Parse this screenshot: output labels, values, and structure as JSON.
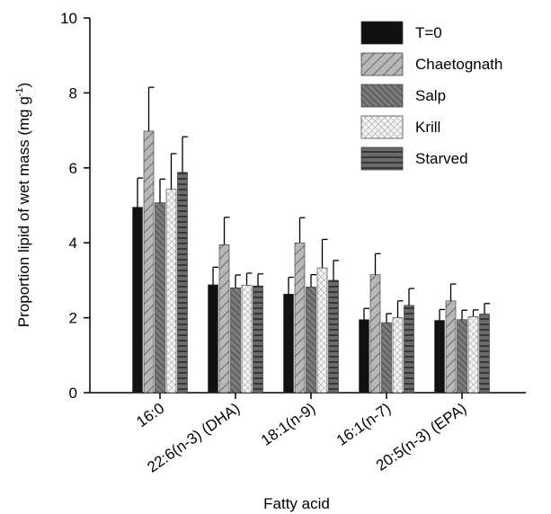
{
  "chart_data": {
    "type": "bar",
    "xlabel": "Fatty acid",
    "ylabel": "Proportion lipid of wet mass (mg g",
    "ylabel_sup": "-1",
    "ylabel_end": ")",
    "ylim": [
      0,
      10
    ],
    "yticks": [
      0,
      2,
      4,
      6,
      8,
      10
    ],
    "grid": false,
    "legend_position": "top-right",
    "error_bars": true,
    "categories": [
      "16:0",
      "22:6(n-3) (DHA)",
      "18:1(n-9)",
      "16:1(n-7)",
      "20:5(n-3) (EPA)"
    ],
    "series": [
      {
        "name": "T=0",
        "fill": "solid",
        "color": "#111111",
        "values": [
          4.95,
          2.88,
          2.63,
          1.95,
          1.93
        ],
        "errors": [
          0.78,
          0.47,
          0.45,
          0.3,
          0.29
        ]
      },
      {
        "name": "Chaetognath",
        "fill": "diagonal-wide",
        "color": "#b0b0b0",
        "values": [
          6.98,
          3.95,
          4.0,
          3.15,
          2.45
        ],
        "errors": [
          1.17,
          0.73,
          0.67,
          0.56,
          0.45
        ]
      },
      {
        "name": "Salp",
        "fill": "diagonal-dense",
        "color": "#707070",
        "values": [
          5.07,
          2.8,
          2.82,
          1.87,
          1.95
        ],
        "errors": [
          0.63,
          0.34,
          0.33,
          0.24,
          0.25
        ]
      },
      {
        "name": "Krill",
        "fill": "crosshatch",
        "color": "#e4e4e4",
        "values": [
          5.43,
          2.87,
          3.33,
          2.0,
          2.03
        ],
        "errors": [
          0.95,
          0.32,
          0.76,
          0.45,
          0.18
        ]
      },
      {
        "name": "Starved",
        "fill": "horizontal",
        "color": "#5a5a5a",
        "values": [
          5.88,
          2.85,
          3.0,
          2.33,
          2.1
        ],
        "errors": [
          0.95,
          0.32,
          0.53,
          0.45,
          0.28
        ]
      }
    ]
  }
}
